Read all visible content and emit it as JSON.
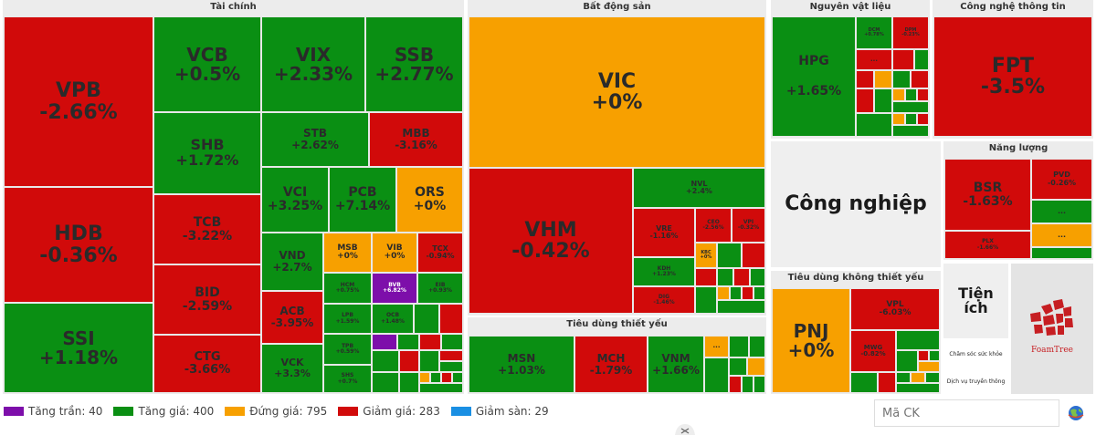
{
  "colors": {
    "up": "#0a8f13",
    "down": "#d10a0a",
    "flat": "#f7a000",
    "ceiling": "#7d0eaa",
    "floor": "#1a8fe3"
  },
  "sectors": {
    "finance": "Tài chính",
    "realestate": "Bất động sản",
    "materials": "Nguyên vật liệu",
    "tech": "Công nghệ thông tin",
    "energy": "Năng lượng",
    "industrial": "Công nghiệp",
    "discretionary": "Tiêu dùng không thiết yếu",
    "staples": "Tiêu dùng thiết yếu",
    "utilities": "Tiện ích",
    "health": "Chăm sóc sức khỏe",
    "telecom": "Dịch vụ truyền thông",
    "more": "..."
  },
  "stocks": {
    "VPB": {
      "ticker": "VPB",
      "change": "-2.66%"
    },
    "HDB": {
      "ticker": "HDB",
      "change": "-0.36%"
    },
    "SSI": {
      "ticker": "SSI",
      "change": "+1.18%"
    },
    "VCB": {
      "ticker": "VCB",
      "change": "+0.5%"
    },
    "VIX": {
      "ticker": "VIX",
      "change": "+2.33%"
    },
    "SSB": {
      "ticker": "SSB",
      "change": "+2.77%"
    },
    "SHB": {
      "ticker": "SHB",
      "change": "+1.72%"
    },
    "STB": {
      "ticker": "STB",
      "change": "+2.62%"
    },
    "MBB": {
      "ticker": "MBB",
      "change": "-3.16%"
    },
    "TCB": {
      "ticker": "TCB",
      "change": "-3.22%"
    },
    "VCI": {
      "ticker": "VCI",
      "change": "+3.25%"
    },
    "PCB": {
      "ticker": "PCB",
      "change": "+7.14%"
    },
    "ORS": {
      "ticker": "ORS",
      "change": "+0%"
    },
    "BID": {
      "ticker": "BID",
      "change": "-2.59%"
    },
    "VND": {
      "ticker": "VND",
      "change": "+2.7%"
    },
    "MSB": {
      "ticker": "MSB",
      "change": "+0%"
    },
    "VIB": {
      "ticker": "VIB",
      "change": "+0%"
    },
    "TCX": {
      "ticker": "TCX",
      "change": "-0.94%"
    },
    "HCM": {
      "ticker": "HCM",
      "change": "+0.75%"
    },
    "BVB": {
      "ticker": "BVB",
      "change": "+6.82%"
    },
    "EIB": {
      "ticker": "EIB",
      "change": "+0.93%"
    },
    "ACB": {
      "ticker": "ACB",
      "change": "-3.95%"
    },
    "LPB": {
      "ticker": "LPB",
      "change": "+1.59%"
    },
    "OCB": {
      "ticker": "OCB",
      "change": "+1.48%"
    },
    "CTG": {
      "ticker": "CTG",
      "change": "-3.66%"
    },
    "VCK": {
      "ticker": "VCK",
      "change": "+3.3%"
    },
    "TPB": {
      "ticker": "TPB",
      "change": "+0.59%"
    },
    "SHS": {
      "ticker": "SHS",
      "change": "+0.7%"
    },
    "VIC": {
      "ticker": "VIC",
      "change": "+0%"
    },
    "VHM": {
      "ticker": "VHM",
      "change": "-0.42%"
    },
    "NVL": {
      "ticker": "NVL",
      "change": "+2.4%"
    },
    "VRE": {
      "ticker": "VRE",
      "change": "-1.16%"
    },
    "CEO": {
      "ticker": "CEO",
      "change": "-2.56%"
    },
    "VPI": {
      "ticker": "VPI",
      "change": "-0.32%"
    },
    "KBC": {
      "ticker": "KBC",
      "change": "+0%"
    },
    "KDH": {
      "ticker": "KDH",
      "change": "+1.23%"
    },
    "DIG": {
      "ticker": "DIG",
      "change": "-1.46%"
    },
    "MSN": {
      "ticker": "MSN",
      "change": "+1.03%"
    },
    "MCH": {
      "ticker": "MCH",
      "change": "-1.79%"
    },
    "VNM": {
      "ticker": "VNM",
      "change": "+1.66%"
    },
    "HPG": {
      "ticker": "HPG",
      "change": "+1.65%"
    },
    "DCM": {
      "ticker": "DCM",
      "change": "+0.78%"
    },
    "DPM": {
      "ticker": "DPM",
      "change": "-0.23%"
    },
    "FPT": {
      "ticker": "FPT",
      "change": "-3.5%"
    },
    "BSR": {
      "ticker": "BSR",
      "change": "-1.63%"
    },
    "PVD": {
      "ticker": "PVD",
      "change": "-0.26%"
    },
    "PLX": {
      "ticker": "PLX",
      "change": "-1.66%"
    },
    "PNJ": {
      "ticker": "PNJ",
      "change": "+0%"
    },
    "VPL": {
      "ticker": "VPL",
      "change": "-6.03%"
    },
    "MWG": {
      "ticker": "MWG",
      "change": "-0.82%"
    }
  },
  "legend": [
    {
      "label": "Tăng trần: 40",
      "color": "#7d0eaa"
    },
    {
      "label": "Tăng giá: 400",
      "color": "#0a8f13"
    },
    {
      "label": "Đứng giá: 795",
      "color": "#f7a000"
    },
    {
      "label": "Giảm giá: 283",
      "color": "#d10a0a"
    },
    {
      "label": "Giảm sàn: 29",
      "color": "#1a8fe3"
    }
  ],
  "search": {
    "placeholder": "Mã CK"
  },
  "branding": {
    "logo_text": "FoamTree"
  }
}
